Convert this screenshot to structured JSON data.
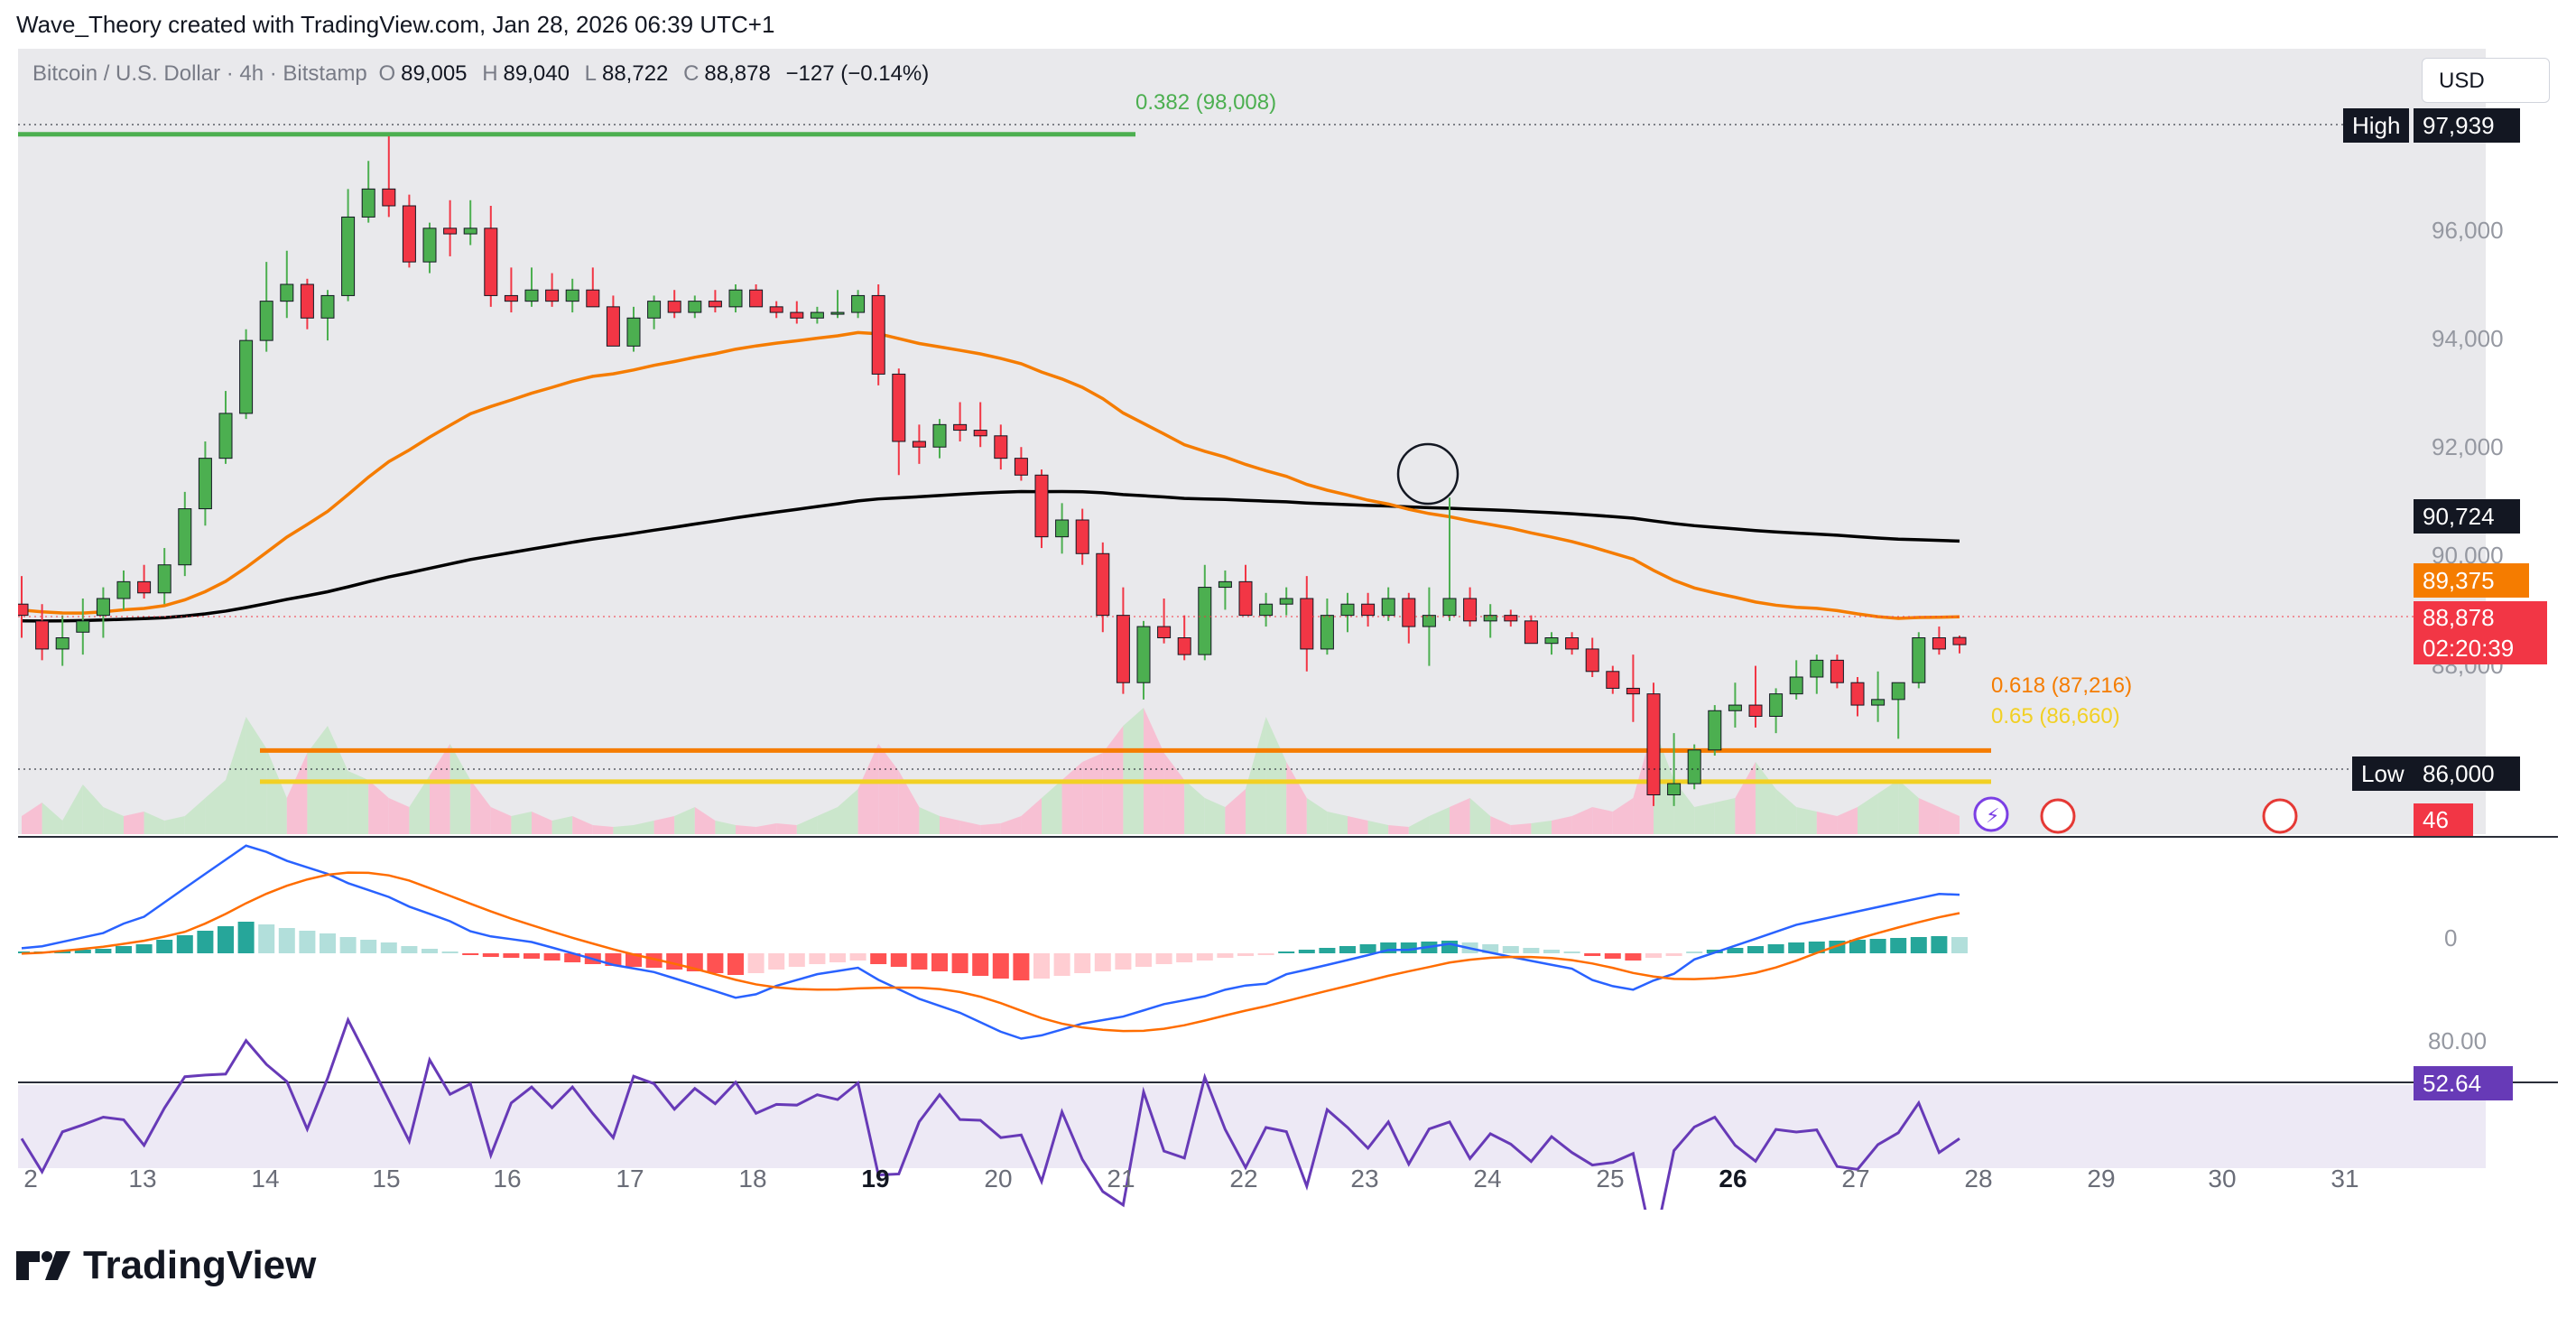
{
  "header": {
    "title": "Wave_Theory created with TradingView.com, Jan 28, 2026 06:39 UTC+1"
  },
  "symbol": {
    "name": "Bitcoin / U.S. Dollar · 4h · Bitstamp",
    "o_label": "O",
    "o": "89,005",
    "h_label": "H",
    "h": "89,040",
    "l_label": "L",
    "l": "88,722",
    "c_label": "C",
    "c": "88,878",
    "change": "−127 (−0.14%)"
  },
  "currency_button": "USD",
  "price_axis": {
    "ticks": [
      "96,000",
      "94,000",
      "92,000",
      "90,000",
      "88,000"
    ]
  },
  "markers": {
    "high_label": "High",
    "high_value": "97,939",
    "low_label": "Low",
    "low_value": "86,000",
    "ma200_value": "90,724",
    "ma50_value": "89,375",
    "last_price": "88,878",
    "countdown": "02:20:39",
    "volume_value": "46"
  },
  "fib": {
    "f382": "0.382 (98,008)",
    "f618": "0.618 (87,216)",
    "f65": "0.65 (86,660)"
  },
  "macd": {
    "zero_label": "0"
  },
  "rsi": {
    "top_label": "80.00",
    "value": "52.64"
  },
  "x_axis": {
    "labels": [
      "2",
      "13",
      "14",
      "15",
      "16",
      "17",
      "18",
      "19",
      "20",
      "21",
      "22",
      "23",
      "24",
      "25",
      "26",
      "27",
      "28",
      "29",
      "30",
      "31"
    ]
  },
  "colors": {
    "up": "#4caf50",
    "down": "#f23645",
    "ma50": "#f57c00",
    "ma200": "#000000",
    "fib618": "#f57c00",
    "fib65": "#f2d024",
    "fib382": "#4caf50",
    "macd": "#2962ff",
    "signal": "#ff6d00",
    "rsi": "#673ab7"
  },
  "logo": {
    "text": "TradingView"
  },
  "chart_data": {
    "type": "candlestick",
    "title": "Bitcoin / U.S. Dollar · 4h · Bitstamp",
    "ylim": [
      85500,
      99500
    ],
    "ohlc": [
      [
        89600,
        90100,
        89000,
        89400
      ],
      [
        89300,
        89600,
        88600,
        88800
      ],
      [
        88800,
        89400,
        88500,
        89000
      ],
      [
        89100,
        89700,
        88700,
        89300
      ],
      [
        89400,
        89900,
        89000,
        89700
      ],
      [
        89700,
        90200,
        89500,
        90000
      ],
      [
        90000,
        90300,
        89700,
        89800
      ],
      [
        89800,
        90600,
        89600,
        90300
      ],
      [
        90300,
        91600,
        90100,
        91300
      ],
      [
        91300,
        92500,
        91000,
        92200
      ],
      [
        92200,
        93400,
        92100,
        93000
      ],
      [
        93000,
        94500,
        92900,
        94300
      ],
      [
        94300,
        95700,
        94100,
        95000
      ],
      [
        95000,
        95900,
        94700,
        95300
      ],
      [
        95300,
        95400,
        94500,
        94700
      ],
      [
        94700,
        95200,
        94300,
        95100
      ],
      [
        95100,
        97000,
        95000,
        96500
      ],
      [
        96500,
        97500,
        96400,
        97000
      ],
      [
        97000,
        97939,
        96500,
        96700
      ],
      [
        96700,
        96900,
        95600,
        95700
      ],
      [
        95700,
        96400,
        95500,
        96300
      ],
      [
        96300,
        96800,
        95800,
        96200
      ],
      [
        96200,
        96800,
        96000,
        96300
      ],
      [
        96300,
        96700,
        94900,
        95100
      ],
      [
        95100,
        95600,
        94800,
        95000
      ],
      [
        95000,
        95600,
        94900,
        95200
      ],
      [
        95200,
        95500,
        94900,
        95000
      ],
      [
        95000,
        95400,
        94800,
        95200
      ],
      [
        95200,
        95600,
        94900,
        94900
      ],
      [
        94900,
        95100,
        94200,
        94200
      ],
      [
        94200,
        94900,
        94100,
        94700
      ],
      [
        94700,
        95100,
        94500,
        95000
      ],
      [
        95000,
        95200,
        94700,
        94800
      ],
      [
        94800,
        95100,
        94700,
        95000
      ],
      [
        95000,
        95200,
        94800,
        94900
      ],
      [
        94900,
        95300,
        94800,
        95200
      ],
      [
        95200,
        95300,
        94900,
        94900
      ],
      [
        94900,
        95000,
        94700,
        94800
      ],
      [
        94800,
        95000,
        94600,
        94700
      ],
      [
        94700,
        94900,
        94600,
        94800
      ],
      [
        94800,
        95200,
        94700,
        94800
      ],
      [
        94800,
        95200,
        94700,
        95100
      ],
      [
        95100,
        95300,
        93500,
        93700
      ],
      [
        93700,
        93800,
        91900,
        92500
      ],
      [
        92500,
        92800,
        92100,
        92400
      ],
      [
        92400,
        92900,
        92200,
        92800
      ],
      [
        92800,
        93200,
        92500,
        92700
      ],
      [
        92700,
        93200,
        92400,
        92600
      ],
      [
        92600,
        92800,
        92000,
        92200
      ],
      [
        92200,
        92400,
        91800,
        91900
      ],
      [
        91900,
        92000,
        90600,
        90800
      ],
      [
        90800,
        91400,
        90500,
        91100
      ],
      [
        91100,
        91300,
        90300,
        90500
      ],
      [
        90500,
        90700,
        89100,
        89400
      ],
      [
        89400,
        89900,
        88000,
        88200
      ],
      [
        88200,
        89300,
        87900,
        89200
      ],
      [
        89200,
        89700,
        88900,
        89000
      ],
      [
        89000,
        89400,
        88600,
        88700
      ],
      [
        88700,
        90300,
        88600,
        89900
      ],
      [
        89900,
        90200,
        89500,
        90000
      ],
      [
        90000,
        90300,
        89400,
        89400
      ],
      [
        89400,
        89800,
        89200,
        89600
      ],
      [
        89600,
        89900,
        89400,
        89700
      ],
      [
        89700,
        90100,
        88400,
        88800
      ],
      [
        88800,
        89700,
        88700,
        89400
      ],
      [
        89400,
        89800,
        89100,
        89600
      ],
      [
        89600,
        89800,
        89200,
        89400
      ],
      [
        89400,
        89900,
        89300,
        89700
      ],
      [
        89700,
        89800,
        88900,
        89200
      ],
      [
        89200,
        89900,
        88500,
        89400
      ],
      [
        89400,
        91500,
        89300,
        89700
      ],
      [
        89700,
        89900,
        89200,
        89300
      ],
      [
        89300,
        89600,
        89000,
        89400
      ],
      [
        89400,
        89500,
        89200,
        89300
      ],
      [
        89300,
        89400,
        88900,
        88900
      ],
      [
        88900,
        89100,
        88700,
        89000
      ],
      [
        89000,
        89100,
        88700,
        88800
      ],
      [
        88800,
        89000,
        88300,
        88400
      ],
      [
        88400,
        88500,
        88000,
        88100
      ],
      [
        88100,
        88700,
        87500,
        88000
      ],
      [
        88000,
        88200,
        86000,
        86200
      ],
      [
        86200,
        87300,
        86000,
        86400
      ],
      [
        86400,
        87100,
        86300,
        87000
      ],
      [
        87000,
        87800,
        86900,
        87700
      ],
      [
        87700,
        88200,
        87400,
        87800
      ],
      [
        87800,
        88500,
        87400,
        87600
      ],
      [
        87600,
        88100,
        87300,
        88000
      ],
      [
        88000,
        88600,
        87900,
        88300
      ],
      [
        88300,
        88700,
        88000,
        88600
      ],
      [
        88600,
        88700,
        88100,
        88200
      ],
      [
        88200,
        88300,
        87600,
        87800
      ],
      [
        87800,
        88400,
        87500,
        87900
      ],
      [
        87900,
        88200,
        87200,
        88200
      ],
      [
        88200,
        89100,
        88100,
        89000
      ],
      [
        89000,
        89200,
        88700,
        88800
      ],
      [
        89005,
        89040,
        88722,
        88878
      ]
    ],
    "ma50": {
      "last": 89375
    },
    "ma200": {
      "last": 90724
    }
  }
}
